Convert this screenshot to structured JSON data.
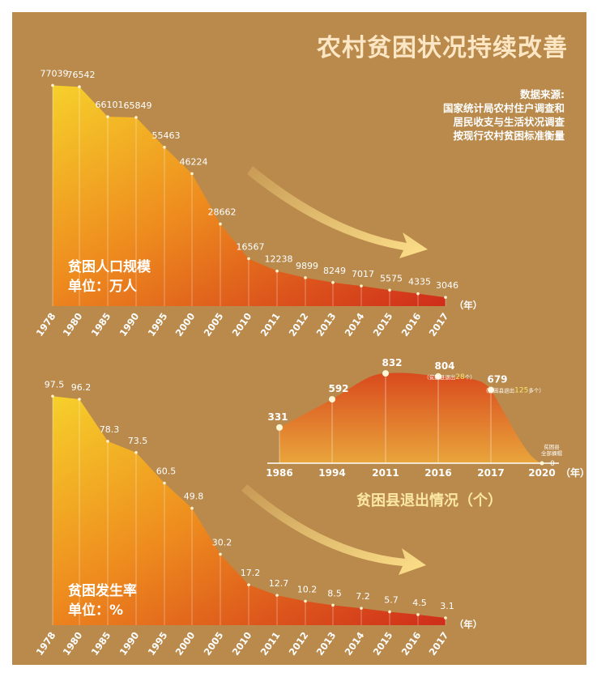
{
  "title": "农村贫困状况持续改善",
  "source_lines": [
    "数据来源:",
    "国家统计局农村住户调查和",
    "居民收支与生活状况调查",
    "按现行农村贫困标准衡量"
  ],
  "colors": {
    "background": "#b98a4c",
    "area_top": "#f6c728",
    "area_bottom": "#d2341b",
    "labels": "#ffffff",
    "accent": "#fbe7a2"
  },
  "chart_data": [
    {
      "type": "area",
      "title": "贫困人口规模",
      "unit_label": "单位：万人",
      "x_unit": "（年）",
      "categories": [
        "1978",
        "1980",
        "1985",
        "1990",
        "1995",
        "2000",
        "2005",
        "2010",
        "2011",
        "2012",
        "2013",
        "2014",
        "2015",
        "2016",
        "2017"
      ],
      "values": [
        77039,
        76542,
        66101,
        65849,
        55463,
        46224,
        28662,
        16567,
        12238,
        9899,
        8249,
        7017,
        5575,
        4335,
        3046
      ],
      "value_labels": [
        "77039",
        "76542",
        "66101",
        "65849",
        "55463",
        "46224",
        "28662",
        "16567",
        "12238",
        "9899",
        "8249",
        "7017",
        "5575",
        "4335",
        "3046"
      ],
      "ylim": [
        0,
        80000
      ]
    },
    {
      "type": "area",
      "title": "贫困发生率",
      "unit_label": "单位：%",
      "x_unit": "（年）",
      "categories": [
        "1978",
        "1980",
        "1985",
        "1990",
        "1995",
        "2000",
        "2005",
        "2010",
        "2011",
        "2012",
        "2013",
        "2014",
        "2015",
        "2016",
        "2017"
      ],
      "values": [
        97.5,
        96.2,
        78.3,
        73.5,
        60.5,
        49.8,
        30.2,
        17.2,
        12.7,
        10.2,
        8.5,
        7.2,
        5.7,
        4.5,
        3.1
      ],
      "value_labels": [
        "97.5",
        "96.2",
        "78.3",
        "73.5",
        "60.5",
        "49.8",
        "30.2",
        "17.2",
        "12.7",
        "10.2",
        "8.5",
        "7.2",
        "5.7",
        "4.5",
        "3.1"
      ],
      "ylim": [
        0,
        100
      ]
    },
    {
      "type": "area",
      "title": "贫困县退出情况（个）",
      "x_unit": "（年）",
      "categories": [
        "1986",
        "1994",
        "2011",
        "2016",
        "2017",
        "2020"
      ],
      "values": [
        331,
        592,
        832,
        804,
        679,
        0
      ],
      "value_labels": [
        "331",
        "592",
        "832",
        "804",
        "679",
        "0"
      ],
      "ylim": [
        0,
        900
      ],
      "annotations": [
        {
          "category": "2016",
          "text_before": "贫困县退出",
          "highlight": "28",
          "text_after": "个"
        },
        {
          "category": "2017",
          "text_before": "贫困县退出",
          "highlight": "125",
          "text_after": "多个"
        },
        {
          "category": "2020",
          "text": "贫困县全部摘帽"
        }
      ]
    }
  ]
}
